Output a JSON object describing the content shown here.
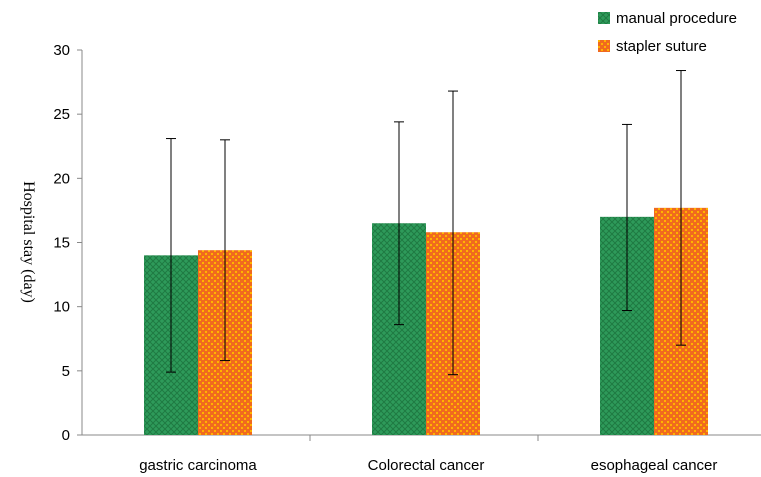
{
  "chart_data": {
    "type": "bar",
    "categories": [
      "gastric carcinoma",
      "Colorectal cancer",
      "esophageal cancer"
    ],
    "series": [
      {
        "name": "manual procedure",
        "values": [
          14.0,
          16.5,
          17.0
        ],
        "error_low": [
          4.9,
          8.6,
          9.7
        ],
        "error_high": [
          23.1,
          24.4,
          24.2
        ],
        "color": "#2e9a5a"
      },
      {
        "name": "stapler suture",
        "values": [
          14.4,
          15.8,
          17.7
        ],
        "error_low": [
          5.8,
          4.7,
          7.0
        ],
        "error_high": [
          23.0,
          26.8,
          28.4
        ],
        "color": "#f06a1e"
      }
    ],
    "title": "",
    "xlabel": "",
    "ylabel": "Hospital stay (day)",
    "ylim": [
      0,
      30
    ],
    "yticks": [
      0,
      5,
      10,
      15,
      20,
      25,
      30
    ],
    "grid": false,
    "legend": "top-right"
  }
}
